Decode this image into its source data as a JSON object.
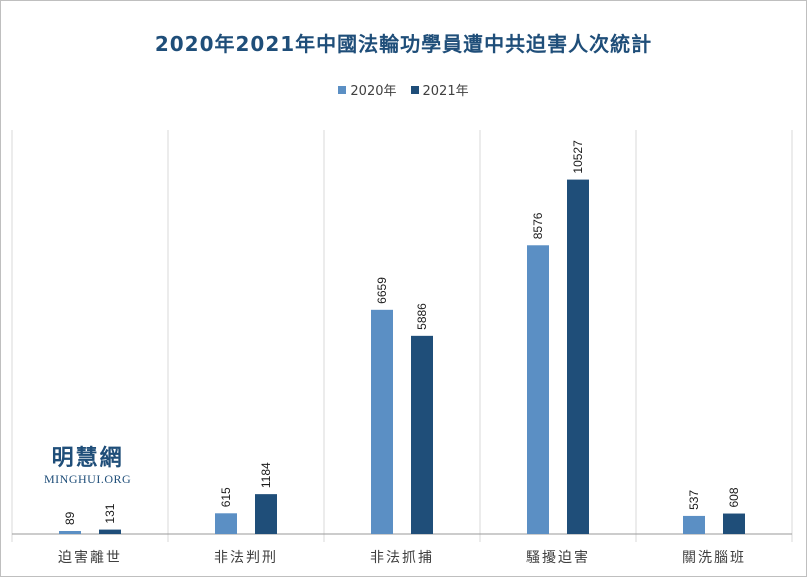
{
  "colors": {
    "s2020": "#5b8fc4",
    "s2021": "#1f4e79",
    "grid": "#d9d9d9",
    "axis": "#9a9a9a"
  },
  "watermark": {
    "cn": "明慧網",
    "en": "MINGHUI.ORG"
  },
  "chart_data": {
    "type": "bar",
    "title": "2020年2021年中國法輪功學員遭中共迫害人次統計",
    "categories": [
      "迫害離世",
      "非法判刑",
      "非法抓捕",
      "騷擾迫害",
      "關洗腦班"
    ],
    "series": [
      {
        "name": "2020年",
        "values": [
          89,
          615,
          6659,
          8576,
          537
        ]
      },
      {
        "name": "2021年",
        "values": [
          131,
          1184,
          5886,
          10527,
          608
        ]
      }
    ],
    "ylim": [
      0,
      12000
    ],
    "legend": "top-center",
    "grid": "vertical category separators"
  }
}
